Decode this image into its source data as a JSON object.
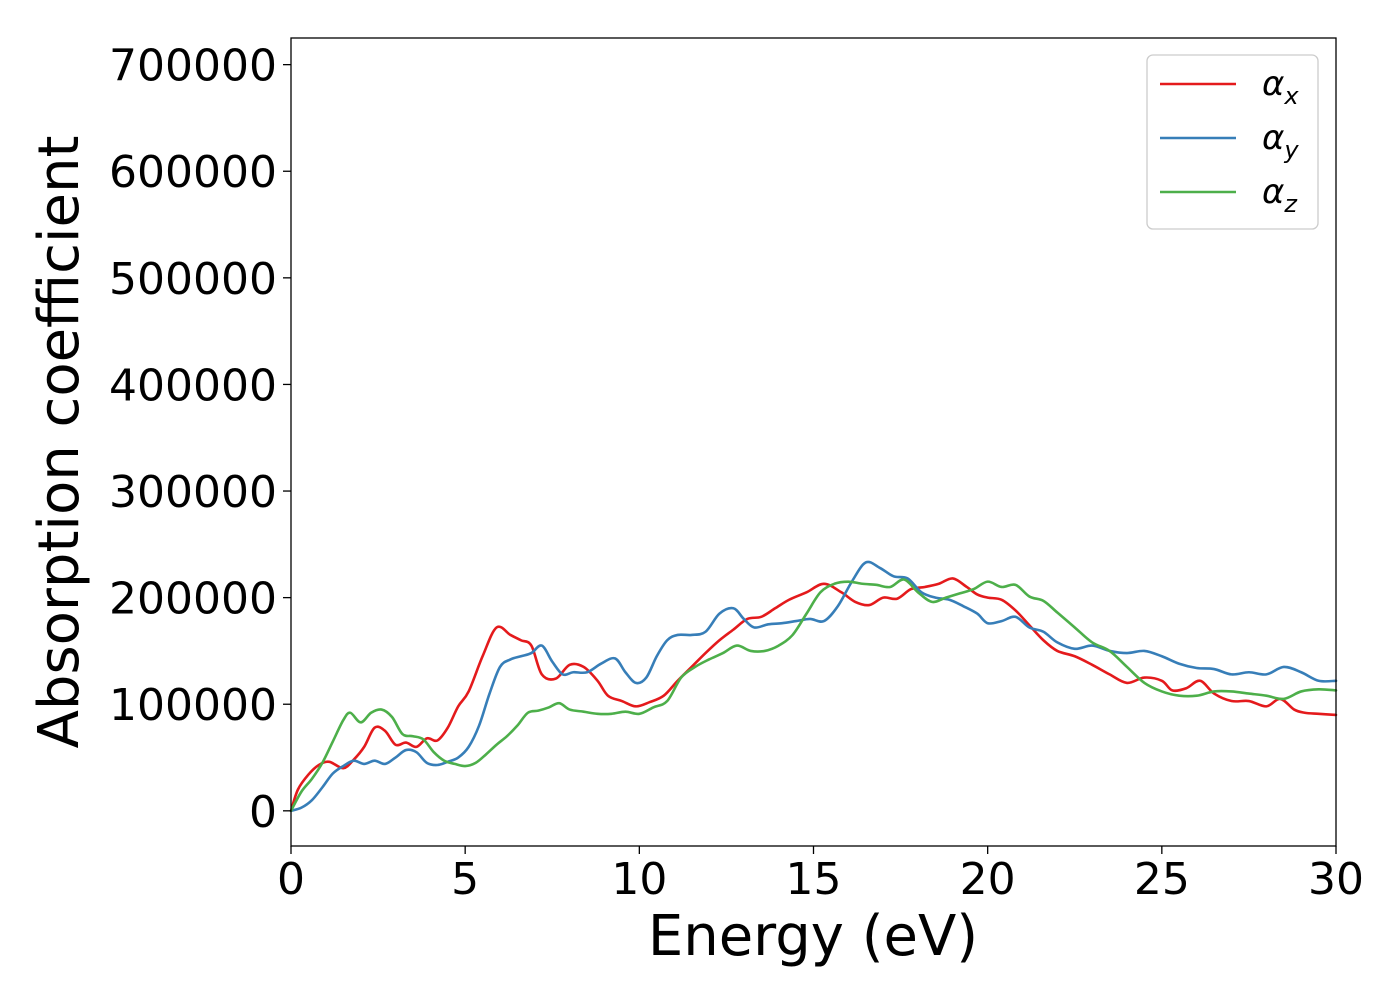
{
  "chart_data": {
    "type": "line",
    "xlabel": "Energy (eV)",
    "ylabel": "Absorption coefficient",
    "xlim": [
      0,
      30
    ],
    "ylim": [
      -33000,
      725000
    ],
    "xticks": [
      0,
      5,
      10,
      15,
      20,
      25,
      30
    ],
    "yticks": [
      0,
      100000,
      200000,
      300000,
      400000,
      500000,
      600000,
      700000
    ],
    "grid": false,
    "legend_position": "top-right",
    "series": [
      {
        "name": "α",
        "subscript": "x",
        "color": "#e41a1c",
        "x": [
          0,
          0.2,
          0.5,
          0.8,
          1.1,
          1.5,
          1.8,
          2.1,
          2.4,
          2.7,
          3.0,
          3.3,
          3.6,
          3.9,
          4.2,
          4.5,
          4.8,
          5.1,
          5.5,
          5.9,
          6.3,
          6.6,
          6.9,
          7.2,
          7.6,
          8.0,
          8.4,
          8.8,
          9.1,
          9.5,
          9.9,
          10.3,
          10.7,
          11.1,
          11.5,
          11.9,
          12.3,
          12.7,
          13.1,
          13.5,
          13.9,
          14.3,
          14.8,
          15.3,
          15.8,
          16.2,
          16.6,
          17.0,
          17.4,
          17.8,
          18.2,
          18.6,
          19.0,
          19.4,
          19.7,
          20.0,
          20.4,
          20.8,
          21.2,
          21.6,
          22.0,
          22.5,
          23.0,
          23.5,
          24.0,
          24.5,
          25.0,
          25.3,
          25.7,
          26.1,
          26.5,
          27.0,
          27.5,
          28.0,
          28.4,
          28.8,
          29.1,
          29.5,
          30.0
        ],
        "y": [
          0,
          20000,
          34000,
          43000,
          46000,
          40000,
          48000,
          60000,
          78000,
          75000,
          62000,
          64000,
          60000,
          68000,
          66000,
          78000,
          98000,
          112000,
          145000,
          172000,
          165000,
          160000,
          155000,
          128000,
          124000,
          137000,
          135000,
          122000,
          108000,
          103000,
          98000,
          102000,
          108000,
          122000,
          135000,
          148000,
          160000,
          170000,
          180000,
          182000,
          190000,
          198000,
          205000,
          213000,
          205000,
          196000,
          193000,
          200000,
          199000,
          208000,
          210000,
          213000,
          218000,
          210000,
          203000,
          200000,
          198000,
          188000,
          174000,
          160000,
          150000,
          145000,
          137000,
          128000,
          120000,
          125000,
          122000,
          113000,
          115000,
          122000,
          110000,
          103000,
          103000,
          98000,
          105000,
          95000,
          92000,
          91000,
          90000
        ]
      },
      {
        "name": "α",
        "subscript": "y",
        "color": "#377eb8",
        "x": [
          0,
          0.3,
          0.6,
          0.9,
          1.2,
          1.5,
          1.8,
          2.1,
          2.4,
          2.7,
          3.0,
          3.3,
          3.6,
          3.9,
          4.2,
          4.5,
          4.8,
          5.1,
          5.4,
          5.7,
          6.0,
          6.3,
          6.6,
          6.9,
          7.2,
          7.5,
          7.8,
          8.1,
          8.5,
          8.9,
          9.3,
          9.6,
          9.9,
          10.2,
          10.5,
          10.8,
          11.1,
          11.5,
          11.9,
          12.3,
          12.7,
          13.0,
          13.3,
          13.7,
          14.1,
          14.5,
          14.9,
          15.3,
          15.7,
          16.1,
          16.5,
          16.9,
          17.3,
          17.7,
          18.1,
          18.5,
          18.9,
          19.3,
          19.7,
          20.0,
          20.4,
          20.8,
          21.2,
          21.6,
          22.0,
          22.5,
          23.0,
          23.5,
          24.0,
          24.5,
          25.0,
          25.5,
          26.0,
          26.5,
          27.0,
          27.5,
          28.0,
          28.5,
          29.0,
          29.5,
          30.0
        ],
        "y": [
          0,
          3000,
          10000,
          22000,
          35000,
          42000,
          47000,
          44000,
          47000,
          44000,
          50000,
          57000,
          55000,
          45000,
          43000,
          46000,
          50000,
          60000,
          80000,
          110000,
          135000,
          142000,
          145000,
          148000,
          155000,
          140000,
          128000,
          130000,
          130000,
          138000,
          143000,
          130000,
          120000,
          125000,
          145000,
          160000,
          165000,
          165000,
          168000,
          185000,
          190000,
          180000,
          172000,
          175000,
          176000,
          178000,
          180000,
          178000,
          192000,
          215000,
          233000,
          228000,
          220000,
          218000,
          205000,
          200000,
          198000,
          192000,
          185000,
          176000,
          178000,
          182000,
          172000,
          168000,
          158000,
          152000,
          155000,
          150000,
          148000,
          150000,
          145000,
          138000,
          134000,
          133000,
          128000,
          130000,
          128000,
          135000,
          130000,
          122000,
          122000
        ]
      },
      {
        "name": "α",
        "subscript": "z",
        "color": "#4daf4a",
        "x": [
          0,
          0.3,
          0.6,
          0.9,
          1.2,
          1.5,
          1.7,
          2.0,
          2.3,
          2.6,
          2.9,
          3.2,
          3.5,
          3.8,
          4.1,
          4.4,
          4.7,
          5.0,
          5.3,
          5.6,
          5.9,
          6.2,
          6.5,
          6.8,
          7.1,
          7.4,
          7.7,
          8.0,
          8.4,
          8.8,
          9.2,
          9.6,
          10.0,
          10.4,
          10.8,
          11.2,
          11.6,
          12.0,
          12.4,
          12.8,
          13.2,
          13.6,
          14.0,
          14.4,
          14.8,
          15.2,
          15.6,
          16.0,
          16.4,
          16.8,
          17.2,
          17.6,
          18.0,
          18.4,
          18.8,
          19.2,
          19.6,
          20.0,
          20.4,
          20.8,
          21.2,
          21.6,
          22.0,
          22.5,
          23.0,
          23.5,
          24.0,
          24.5,
          25.0,
          25.5,
          26.0,
          26.5,
          27.0,
          27.5,
          28.0,
          28.5,
          29.0,
          29.5,
          30.0
        ],
        "y": [
          0,
          18000,
          30000,
          45000,
          65000,
          85000,
          92000,
          83000,
          92000,
          95000,
          88000,
          72000,
          70000,
          67000,
          55000,
          47000,
          44000,
          42000,
          45000,
          53000,
          62000,
          70000,
          80000,
          92000,
          94000,
          97000,
          101000,
          95000,
          93000,
          91000,
          91000,
          93000,
          91000,
          97000,
          103000,
          125000,
          135000,
          142000,
          148000,
          155000,
          150000,
          150000,
          155000,
          165000,
          185000,
          205000,
          213000,
          215000,
          213000,
          212000,
          210000,
          217000,
          205000,
          196000,
          200000,
          204000,
          208000,
          215000,
          210000,
          212000,
          201000,
          197000,
          186000,
          172000,
          158000,
          150000,
          135000,
          120000,
          112000,
          108000,
          108000,
          112000,
          112000,
          110000,
          108000,
          105000,
          112000,
          114000,
          113000
        ]
      }
    ]
  }
}
